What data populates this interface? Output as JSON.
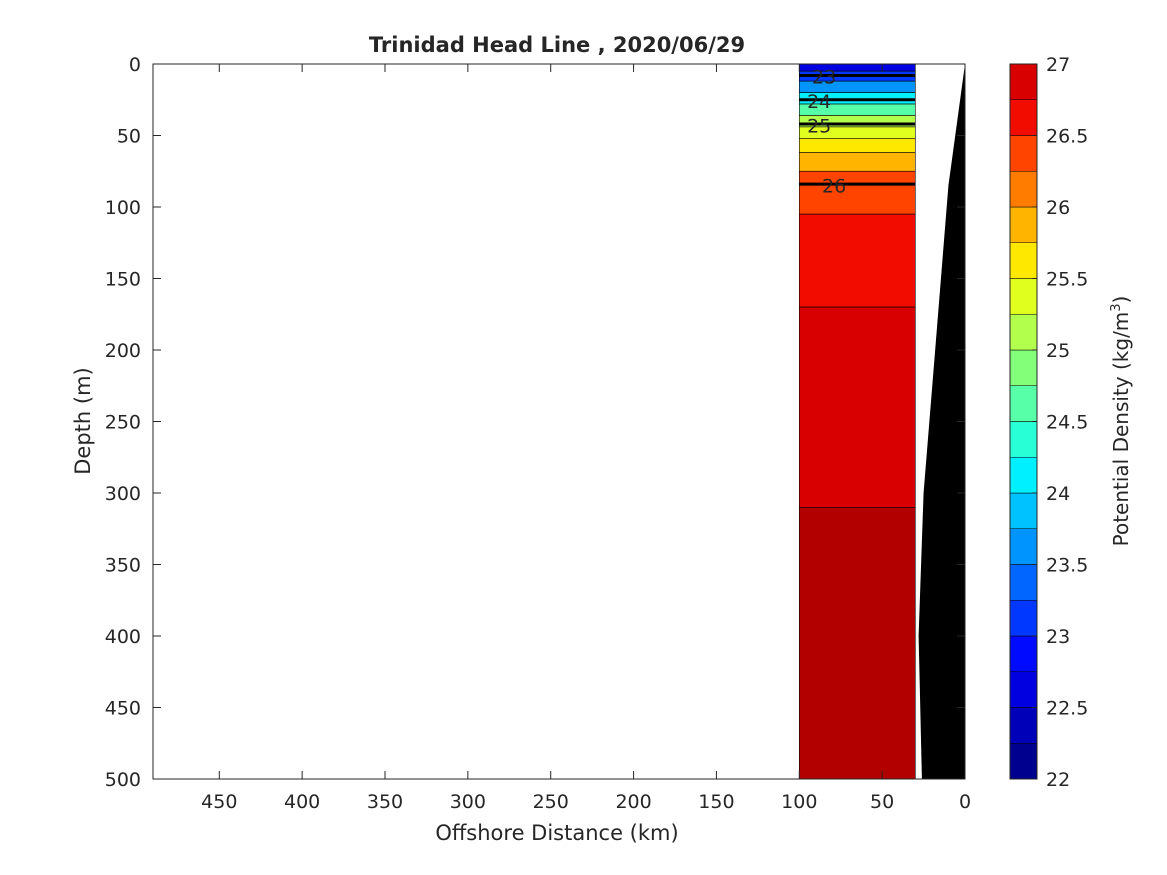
{
  "chart_data": {
    "type": "heatmap",
    "title": "Trinidad Head Line , 2020/06/29",
    "xlabel": "Offshore Distance (km)",
    "ylabel": "Depth (m)",
    "x_reversed": true,
    "y_reversed": true,
    "xlim": [
      0,
      490
    ],
    "ylim": [
      0,
      500
    ],
    "xticks": [
      450,
      400,
      350,
      300,
      250,
      200,
      150,
      100,
      50,
      0
    ],
    "yticks": [
      0,
      50,
      100,
      150,
      200,
      250,
      300,
      350,
      400,
      450,
      500
    ],
    "colorbar": {
      "label": "Potential Density (kg/m",
      "label_superscript": "3",
      "label_suffix": ")",
      "min": 22,
      "max": 27,
      "ticks": [
        "22",
        "22.5",
        "23",
        "23.5",
        "24",
        "24.5",
        "25",
        "25.5",
        "26",
        "26.5",
        "27"
      ],
      "levels": [
        {
          "from": 22.0,
          "to": 22.25,
          "color": "#00008f"
        },
        {
          "from": 22.25,
          "to": 22.5,
          "color": "#0000b8"
        },
        {
          "from": 22.5,
          "to": 22.75,
          "color": "#0000e0"
        },
        {
          "from": 22.75,
          "to": 23.0,
          "color": "#000aff"
        },
        {
          "from": 23.0,
          "to": 23.25,
          "color": "#0038ff"
        },
        {
          "from": 23.25,
          "to": 23.5,
          "color": "#0066ff"
        },
        {
          "from": 23.5,
          "to": 23.75,
          "color": "#0094ff"
        },
        {
          "from": 23.75,
          "to": 24.0,
          "color": "#00c2ff"
        },
        {
          "from": 24.0,
          "to": 24.25,
          "color": "#00f0ff"
        },
        {
          "from": 24.25,
          "to": 24.5,
          "color": "#28ffd6"
        },
        {
          "from": 24.5,
          "to": 24.75,
          "color": "#56ffa8"
        },
        {
          "from": 24.75,
          "to": 25.0,
          "color": "#84ff7a"
        },
        {
          "from": 25.0,
          "to": 25.25,
          "color": "#b2ff4c"
        },
        {
          "from": 25.25,
          "to": 25.5,
          "color": "#e0ff1e"
        },
        {
          "from": 25.5,
          "to": 25.75,
          "color": "#ffe800"
        },
        {
          "from": 25.75,
          "to": 26.0,
          "color": "#ffb400"
        },
        {
          "from": 26.0,
          "to": 26.25,
          "color": "#ff7c00"
        },
        {
          "from": 26.25,
          "to": 26.5,
          "color": "#ff4400"
        },
        {
          "from": 26.5,
          "to": 26.75,
          "color": "#f20c00"
        },
        {
          "from": 26.75,
          "to": 27.0,
          "color": "#d80000"
        },
        {
          "from": 27.0,
          "to": 27.25,
          "color": "#b20000"
        }
      ]
    },
    "contour_labels": [
      {
        "text": "23",
        "distance_km": 85,
        "depth_m": 4
      },
      {
        "text": "24",
        "distance_km": 88,
        "depth_m": 21
      },
      {
        "text": "25",
        "distance_km": 88,
        "depth_m": 38
      },
      {
        "text": "26",
        "distance_km": 79,
        "depth_m": 80
      }
    ],
    "data_extent_km": [
      30,
      100
    ],
    "bathymetry": {
      "color": "#000000",
      "points": [
        [
          0,
          0
        ],
        [
          10,
          85
        ],
        [
          18,
          200
        ],
        [
          25,
          300
        ],
        [
          28,
          400
        ],
        [
          26,
          500
        ]
      ]
    },
    "density_profile_bands": [
      {
        "depth_from": 0,
        "depth_to": 5,
        "value": 22.5
      },
      {
        "depth_from": 5,
        "depth_to": 12,
        "value": 23.0
      },
      {
        "depth_from": 12,
        "depth_to": 20,
        "value": 23.5
      },
      {
        "depth_from": 20,
        "depth_to": 28,
        "value": 24.0
      },
      {
        "depth_from": 28,
        "depth_to": 36,
        "value": 24.5
      },
      {
        "depth_from": 36,
        "depth_to": 44,
        "value": 25.0
      },
      {
        "depth_from": 44,
        "depth_to": 52,
        "value": 25.25
      },
      {
        "depth_from": 52,
        "depth_to": 62,
        "value": 25.5
      },
      {
        "depth_from": 62,
        "depth_to": 75,
        "value": 25.75
      },
      {
        "depth_from": 75,
        "depth_to": 105,
        "value": 26.25
      },
      {
        "depth_from": 105,
        "depth_to": 170,
        "value": 26.5
      },
      {
        "depth_from": 170,
        "depth_to": 310,
        "value": 26.75
      },
      {
        "depth_from": 310,
        "depth_to": 500,
        "value": 27.0
      }
    ]
  }
}
